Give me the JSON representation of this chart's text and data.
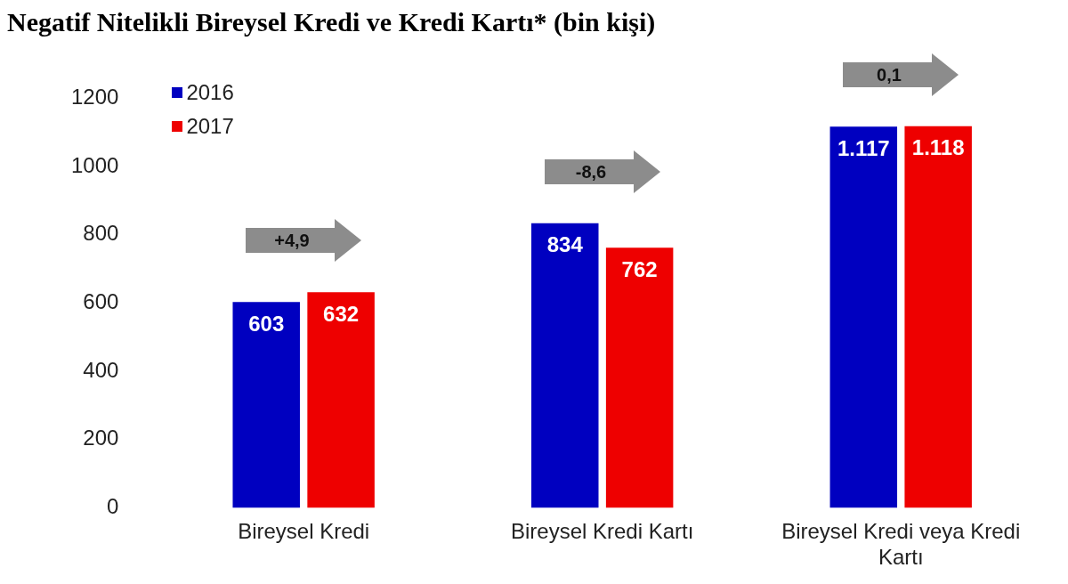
{
  "chart_data": {
    "type": "bar",
    "title": "Negatif Nitelikli Bireysel Kredi ve Kredi Kartı* (bin kişi)",
    "categories": [
      "Bireysel Kredi",
      "Bireysel Kredi Kartı",
      "Bireysel Kredi veya Kredi Kartı"
    ],
    "series": [
      {
        "name": "2016",
        "color": "#0000c0",
        "values": [
          603,
          834,
          1117
        ],
        "value_labels": [
          "603",
          "834",
          "1.117"
        ]
      },
      {
        "name": "2017",
        "color": "#ee0000",
        "values": [
          632,
          762,
          1118
        ],
        "value_labels": [
          "632",
          "762",
          "1.118"
        ]
      }
    ],
    "ylim": [
      0,
      1200
    ],
    "yticks": [
      0,
      200,
      400,
      600,
      800,
      1000,
      1200
    ],
    "grid": false,
    "legend": "top left",
    "annotations": [
      "+4,9",
      "-8,6",
      "0,1"
    ]
  }
}
